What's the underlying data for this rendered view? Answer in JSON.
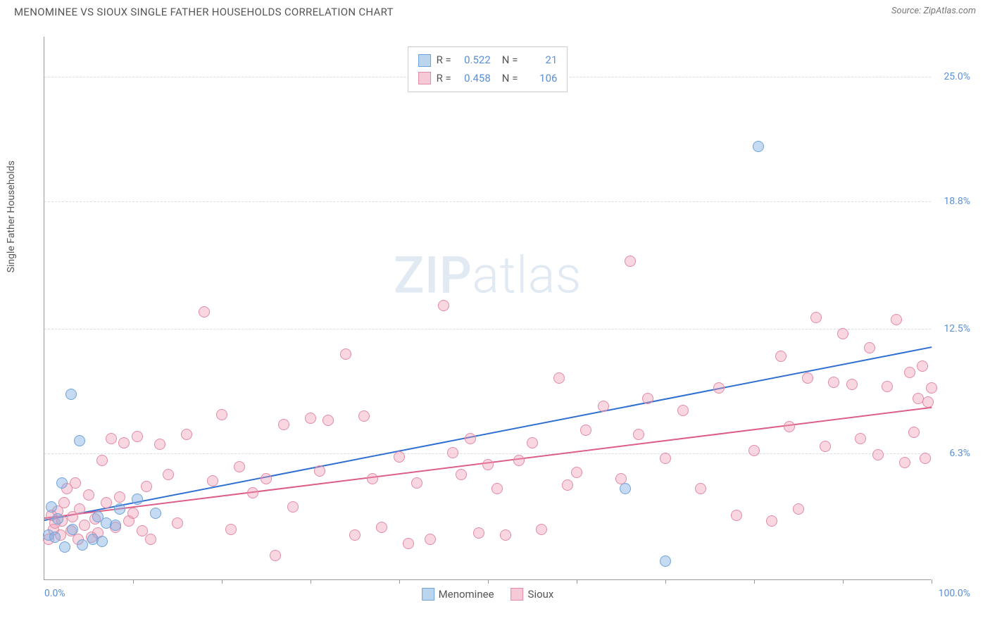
{
  "header": {
    "title": "MENOMINEE VS SIOUX SINGLE FATHER HOUSEHOLDS CORRELATION CHART",
    "source_label": "Source:",
    "source_value": "ZipAtlas.com"
  },
  "chart": {
    "type": "scatter",
    "y_label": "Single Father Households",
    "watermark_bold": "ZIP",
    "watermark_light": "atlas",
    "background_color": "#ffffff",
    "axis_color": "#999999",
    "grid_color": "#dddddd",
    "tick_label_color": "#5b8fd6",
    "xlim": [
      0,
      100
    ],
    "ylim": [
      0,
      27
    ],
    "x_left_label": "0.0%",
    "x_right_label": "100.0%",
    "x_tick_positions": [
      10,
      20,
      30,
      40,
      50,
      60,
      70,
      80,
      90,
      100
    ],
    "y_ticks": [
      {
        "value": 6.3,
        "label": "6.3%"
      },
      {
        "value": 12.5,
        "label": "12.5%"
      },
      {
        "value": 18.8,
        "label": "18.8%"
      },
      {
        "value": 25.0,
        "label": "25.0%"
      }
    ],
    "point_radius": 8,
    "point_border_width": 1.5,
    "series": [
      {
        "name": "Menominee",
        "fill_color": "rgba(128,172,224,0.45)",
        "border_color": "#6fa3db",
        "swatch_fill": "#bcd5ef",
        "swatch_border": "#6fa3db",
        "r_value": "0.522",
        "n_value": "21",
        "trend": {
          "x1": 0,
          "y1": 3.0,
          "x2": 100,
          "y2": 11.6,
          "color": "#2f6fd1",
          "width": 2
        },
        "points": [
          [
            0.5,
            2.2
          ],
          [
            0.8,
            3.6
          ],
          [
            1.2,
            2.1
          ],
          [
            1.5,
            3.0
          ],
          [
            2.0,
            4.8
          ],
          [
            2.3,
            1.6
          ],
          [
            3.0,
            9.2
          ],
          [
            3.2,
            2.5
          ],
          [
            4.0,
            6.9
          ],
          [
            4.3,
            1.7
          ],
          [
            5.5,
            2.0
          ],
          [
            6.0,
            3.1
          ],
          [
            6.5,
            1.9
          ],
          [
            7.0,
            2.8
          ],
          [
            8.0,
            2.7
          ],
          [
            8.5,
            3.5
          ],
          [
            10.5,
            4.0
          ],
          [
            12.5,
            3.3
          ],
          [
            65.5,
            4.5
          ],
          [
            70.0,
            0.9
          ],
          [
            80.5,
            21.5
          ]
        ]
      },
      {
        "name": "Sioux",
        "fill_color": "rgba(240,150,175,0.38)",
        "border_color": "#e38aa4",
        "swatch_fill": "#f5c9d6",
        "swatch_border": "#e38aa4",
        "r_value": "0.458",
        "n_value": "106",
        "trend": {
          "x1": 0,
          "y1": 3.1,
          "x2": 100,
          "y2": 8.6,
          "color": "#de5f86",
          "width": 2
        },
        "points": [
          [
            0.5,
            2.0
          ],
          [
            0.8,
            3.2
          ],
          [
            1.0,
            2.5
          ],
          [
            1.2,
            2.8
          ],
          [
            1.5,
            3.4
          ],
          [
            1.8,
            2.2
          ],
          [
            2.0,
            2.9
          ],
          [
            2.2,
            3.8
          ],
          [
            2.5,
            4.5
          ],
          [
            3.0,
            2.4
          ],
          [
            3.2,
            3.1
          ],
          [
            3.5,
            4.8
          ],
          [
            3.8,
            2.0
          ],
          [
            4.0,
            3.5
          ],
          [
            4.5,
            2.7
          ],
          [
            5.0,
            4.2
          ],
          [
            5.3,
            2.1
          ],
          [
            5.7,
            3.0
          ],
          [
            6.0,
            2.3
          ],
          [
            6.5,
            5.9
          ],
          [
            7.0,
            3.8
          ],
          [
            7.5,
            7.0
          ],
          [
            8.0,
            2.6
          ],
          [
            8.5,
            4.1
          ],
          [
            9.0,
            6.8
          ],
          [
            9.5,
            2.9
          ],
          [
            10.0,
            3.3
          ],
          [
            10.5,
            7.1
          ],
          [
            11.0,
            2.4
          ],
          [
            11.5,
            4.6
          ],
          [
            12.0,
            2.0
          ],
          [
            13.0,
            6.7
          ],
          [
            14.0,
            5.2
          ],
          [
            15.0,
            2.8
          ],
          [
            16.0,
            7.2
          ],
          [
            18.0,
            13.3
          ],
          [
            19.0,
            4.9
          ],
          [
            20.0,
            8.2
          ],
          [
            21.0,
            2.5
          ],
          [
            22.0,
            5.6
          ],
          [
            23.5,
            4.3
          ],
          [
            25.0,
            5.0
          ],
          [
            26.0,
            1.2
          ],
          [
            27.0,
            7.7
          ],
          [
            28.0,
            3.6
          ],
          [
            30.0,
            8.0
          ],
          [
            31.0,
            5.4
          ],
          [
            32.0,
            7.9
          ],
          [
            34.0,
            11.2
          ],
          [
            35.0,
            2.2
          ],
          [
            36.0,
            8.1
          ],
          [
            37.0,
            5.0
          ],
          [
            38.0,
            2.6
          ],
          [
            40.0,
            6.1
          ],
          [
            41.0,
            1.8
          ],
          [
            42.0,
            4.8
          ],
          [
            43.5,
            2.0
          ],
          [
            45.0,
            13.6
          ],
          [
            46.0,
            6.3
          ],
          [
            47.0,
            5.2
          ],
          [
            48.0,
            7.0
          ],
          [
            49.0,
            2.3
          ],
          [
            50.0,
            5.7
          ],
          [
            51.0,
            4.5
          ],
          [
            52.0,
            2.2
          ],
          [
            53.5,
            5.9
          ],
          [
            55.0,
            6.8
          ],
          [
            56.0,
            2.5
          ],
          [
            58.0,
            10.0
          ],
          [
            59.0,
            4.7
          ],
          [
            60.0,
            5.3
          ],
          [
            61.0,
            7.4
          ],
          [
            63.0,
            8.6
          ],
          [
            65.0,
            5.0
          ],
          [
            66.0,
            15.8
          ],
          [
            67.0,
            7.2
          ],
          [
            68.0,
            9.0
          ],
          [
            70.0,
            6.0
          ],
          [
            72.0,
            8.4
          ],
          [
            74.0,
            4.5
          ],
          [
            76.0,
            9.5
          ],
          [
            78.0,
            3.2
          ],
          [
            80.0,
            6.4
          ],
          [
            82.0,
            2.9
          ],
          [
            83.0,
            11.1
          ],
          [
            84.0,
            7.6
          ],
          [
            85.0,
            3.5
          ],
          [
            86.0,
            10.0
          ],
          [
            87.0,
            13.0
          ],
          [
            88.0,
            6.6
          ],
          [
            89.0,
            9.8
          ],
          [
            90.0,
            12.2
          ],
          [
            91.0,
            9.7
          ],
          [
            92.0,
            7.0
          ],
          [
            93.0,
            11.5
          ],
          [
            94.0,
            6.2
          ],
          [
            95.0,
            9.6
          ],
          [
            96.0,
            12.9
          ],
          [
            97.0,
            5.8
          ],
          [
            97.5,
            10.3
          ],
          [
            98.0,
            7.3
          ],
          [
            98.5,
            9.0
          ],
          [
            99.0,
            10.6
          ],
          [
            99.3,
            6.0
          ],
          [
            99.6,
            8.8
          ],
          [
            100.0,
            9.5
          ]
        ]
      }
    ],
    "legend_top": {
      "r_label": "R =",
      "n_label": "N ="
    },
    "legend_bottom_labels": [
      "Menominee",
      "Sioux"
    ]
  }
}
